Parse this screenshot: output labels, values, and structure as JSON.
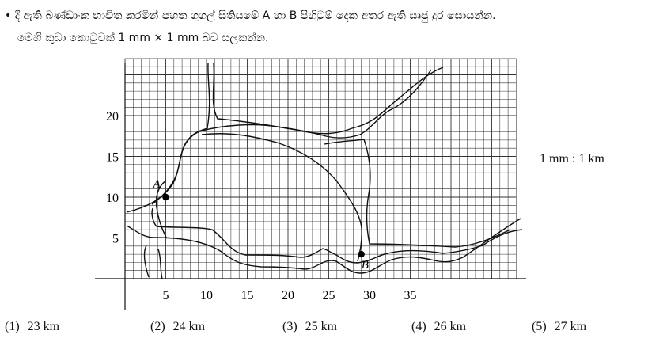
{
  "question": {
    "line1": "• දී ඇති බණ්ඩාංක භාවිත කරමින් පහත ගුගල් සිතියමේ A හා B පිහිටුම් දෙක අතර ඇති සෘජු දුර සොයන්න.",
    "line2": "මෙහි කුඩා කොටුවක් 1 mm × 1 mm බව සලකන්න."
  },
  "scale_label": "1 mm : 1 km",
  "points": [
    {
      "label": "A",
      "x": 5,
      "y": 10
    },
    {
      "label": "B",
      "x": 29,
      "y": 3
    }
  ],
  "axes": {
    "x_ticks": [
      "5",
      "10",
      "15",
      "20",
      "25",
      "30",
      "35"
    ],
    "y_ticks": [
      "5",
      "10",
      "15",
      "20"
    ]
  },
  "options": [
    {
      "num": "(1)",
      "text": "23 km"
    },
    {
      "num": "(2)",
      "text": "24 km"
    },
    {
      "num": "(3)",
      "text": "25 km"
    },
    {
      "num": "(4)",
      "text": "26 km"
    },
    {
      "num": "(5)",
      "text": "27 km"
    }
  ]
}
